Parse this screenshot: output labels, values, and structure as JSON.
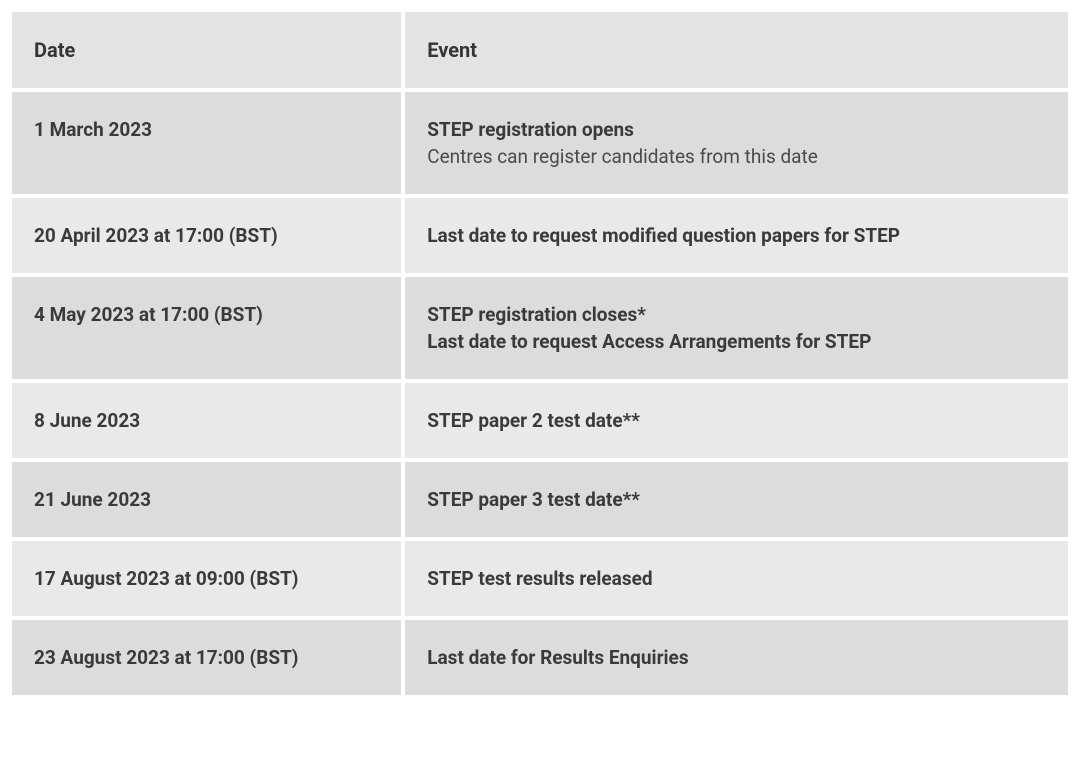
{
  "table": {
    "columns": [
      "Date",
      "Event"
    ],
    "column_widths": [
      "37%",
      "63%"
    ],
    "header_bg": "#e3e3e3",
    "row_bg_odd": "#dcdcdc",
    "row_bg_even": "#e9e9e9",
    "text_color": "#3a3a3a",
    "font_size": 19,
    "header_font_size": 20,
    "rows": [
      {
        "date": "1 March 2023",
        "events": [
          {
            "text": "STEP registration opens",
            "bold": true
          },
          {
            "text": "Centres can register candidates from this date",
            "bold": false
          }
        ]
      },
      {
        "date": "20 April 2023 at 17:00 (BST)",
        "events": [
          {
            "text": "Last date to request modified question papers for STEP",
            "bold": true
          }
        ]
      },
      {
        "date": "4 May 2023 at 17:00 (BST)",
        "events": [
          {
            "text": "STEP registration closes*",
            "bold": true
          },
          {
            "text": "Last date to request Access Arrangements for STEP",
            "bold": true
          }
        ]
      },
      {
        "date": "8 June 2023",
        "events": [
          {
            "text": "STEP paper 2 test date**",
            "bold": true
          }
        ]
      },
      {
        "date": "21 June 2023",
        "events": [
          {
            "text": "STEP paper 3 test date**",
            "bold": true
          }
        ]
      },
      {
        "date": "17 August 2023 at 09:00 (BST)",
        "events": [
          {
            "text": "STEP test results released",
            "bold": true
          }
        ]
      },
      {
        "date": "23 August 2023 at 17:00 (BST)",
        "events": [
          {
            "text": "Last date for Results Enquiries",
            "bold": true
          }
        ]
      }
    ]
  }
}
